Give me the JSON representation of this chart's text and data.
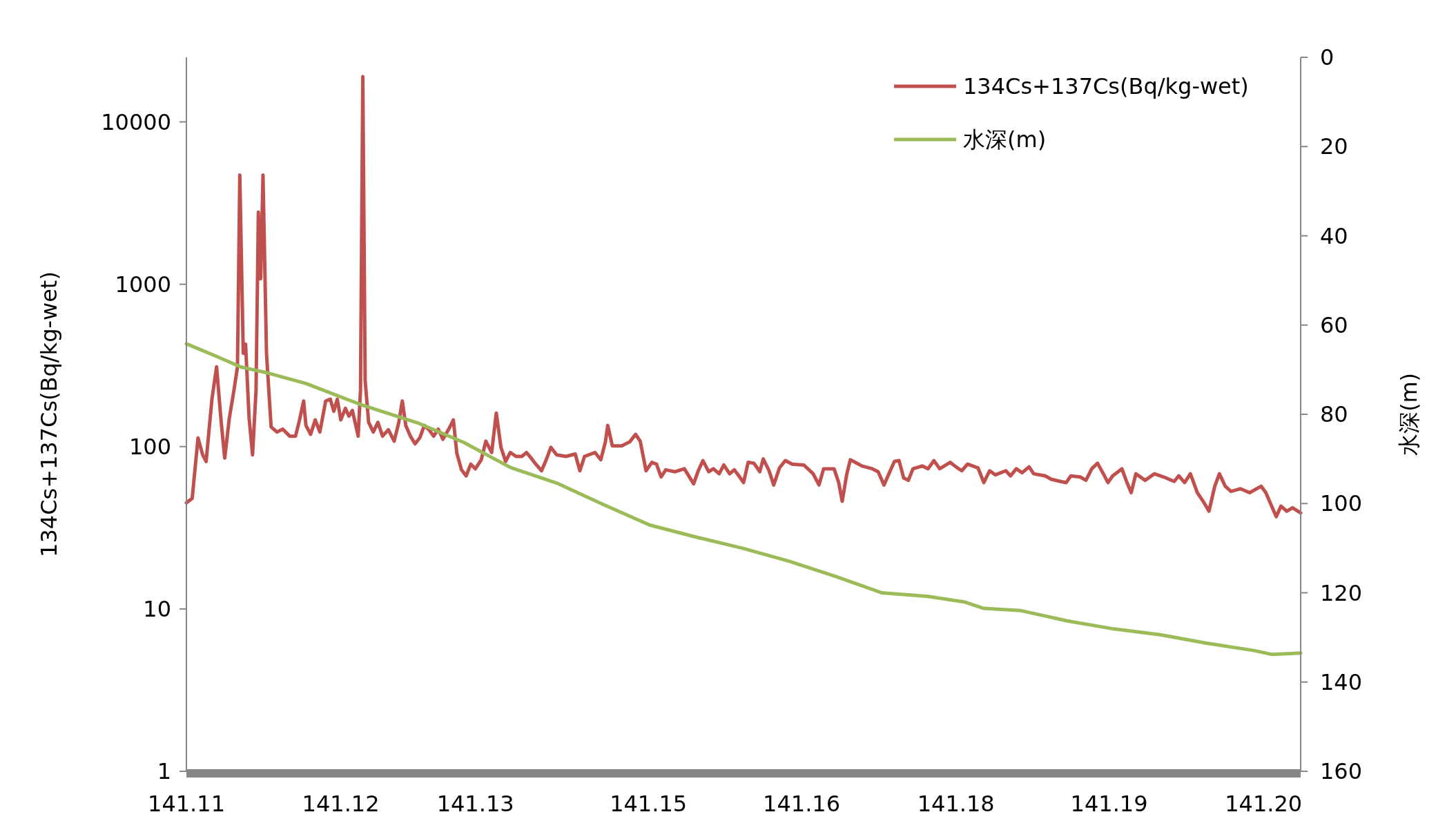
{
  "chart_data": {
    "type": "line",
    "ylabel": "134Cs+137Cs(Bq/kg-wet)",
    "y2label": "水深(m)",
    "log": "y",
    "legend": "top right",
    "xlim": [
      141.11,
      141.206
    ],
    "xticks": [
      141.11,
      {
        "value": 141.1233,
        "label": "141.12"
      },
      {
        "value": 141.1349,
        "label": "141.13"
      },
      {
        "value": 141.1498,
        "label": "141.15"
      },
      {
        "value": 141.163,
        "label": "141.16"
      },
      {
        "value": 141.1763,
        "label": "141.18"
      },
      {
        "value": 141.1895,
        "label": "141.19"
      },
      {
        "value": 141.2028,
        "label": "141.20"
      }
    ],
    "ylim": [
      1,
      25000
    ],
    "yticks": [
      1,
      10,
      100,
      1000,
      10000
    ],
    "y2lim": [
      160,
      0
    ],
    "y2ticks": [
      0,
      20,
      40,
      60,
      80,
      100,
      120,
      140,
      160
    ],
    "series": [
      {
        "name": "134Cs+137Cs(Bq/kg-wet)",
        "color": "#c0504d",
        "x": [
          141.11,
          141.1105,
          141.111,
          141.1114,
          141.1117,
          141.1122,
          141.1126,
          141.113,
          141.1133,
          141.1137,
          141.1141,
          141.1144,
          141.1146,
          141.1149,
          141.1151,
          141.1154,
          141.1157,
          141.116,
          141.1162,
          141.1164,
          141.1166,
          141.1169,
          141.1173,
          141.1178,
          141.1183,
          141.1189,
          141.1194,
          141.1197,
          141.1201,
          141.1203,
          141.1207,
          141.1211,
          141.1215,
          141.122,
          141.1224,
          141.1227,
          141.123,
          141.1233,
          141.1237,
          141.124,
          141.1243,
          141.1248,
          141.125,
          141.1252,
          141.1254,
          141.1257,
          141.1261,
          141.1265,
          141.1269,
          141.1274,
          141.1279,
          141.1283,
          141.1286,
          141.1289,
          141.1293,
          141.1297,
          141.1301,
          141.1305,
          141.1309,
          141.1313,
          141.1317,
          141.1321,
          141.1326,
          141.133,
          141.1333,
          141.1337,
          141.1341,
          141.1345,
          141.1349,
          141.1354,
          141.1358,
          141.1363,
          141.1367,
          141.1371,
          141.1375,
          141.1379,
          141.1384,
          141.1389,
          141.1393,
          141.1397,
          141.1401,
          141.1406,
          141.141,
          141.1414,
          141.1419,
          141.1427,
          141.1435,
          141.1439,
          141.1443,
          141.1452,
          141.1457,
          141.1461,
          141.1463,
          141.1467,
          141.1475,
          141.1482,
          141.1487,
          141.1491,
          141.1496,
          141.1501,
          141.1505,
          141.1509,
          141.1513,
          141.1521,
          141.1529,
          141.1537,
          141.1541,
          141.1545,
          141.155,
          141.1554,
          141.1559,
          141.1563,
          141.1568,
          141.1572,
          141.1576,
          141.158,
          141.1584,
          141.1589,
          141.1594,
          141.1597,
          141.1602,
          141.1606,
          141.1611,
          141.1616,
          141.1622,
          141.1632,
          141.164,
          141.1645,
          141.1649,
          141.1658,
          141.1662,
          141.1665,
          141.1669,
          141.1672,
          141.1682,
          141.1691,
          141.1696,
          141.1701,
          141.1706,
          141.171,
          141.1714,
          141.1718,
          141.1722,
          141.1726,
          141.1734,
          141.1739,
          141.1744,
          141.1749,
          141.1758,
          141.1763,
          141.1768,
          141.1773,
          141.1782,
          141.1787,
          141.1792,
          141.1797,
          141.1806,
          141.181,
          141.1815,
          141.182,
          141.1826,
          141.183,
          141.184,
          141.1845,
          141.1853,
          141.1858,
          141.1862,
          141.187,
          141.1875,
          141.188,
          141.1885,
          141.189,
          141.1894,
          141.1898,
          141.1906,
          141.191,
          141.1914,
          141.1918,
          141.1926,
          141.1934,
          141.1942,
          141.1951,
          141.1955,
          141.196,
          141.1965,
          141.1971,
          141.1976,
          141.1981,
          141.1986,
          141.199,
          141.1995,
          141.2,
          141.2008,
          141.2016,
          141.2026,
          141.203,
          141.2035,
          141.2039,
          141.2043,
          141.2048,
          141.2053,
          141.206
        ],
        "values": [
          45,
          48,
          113,
          89,
          81,
          196,
          310,
          141,
          85,
          150,
          223,
          310,
          4710,
          375,
          428,
          150,
          89,
          223,
          2780,
          1080,
          4710,
          375,
          132,
          123,
          128,
          116,
          116,
          141,
          191,
          135,
          119,
          146,
          123,
          191,
          196,
          165,
          196,
          146,
          172,
          154,
          167,
          116,
          223,
          19000,
          255,
          141,
          123,
          141,
          116,
          127,
          108,
          141,
          191,
          135,
          116,
          104,
          113,
          135,
          127,
          116,
          128,
          111,
          128,
          146,
          91,
          72,
          66,
          78,
          73,
          83,
          108,
          92,
          161,
          99,
          81,
          92,
          87,
          87,
          92,
          85,
          78,
          71,
          83,
          99,
          89,
          87,
          90,
          71,
          87,
          92,
          83,
          107,
          135,
          101,
          101,
          107,
          119,
          108,
          71,
          80,
          78,
          65,
          72,
          70,
          73,
          59,
          71,
          82,
          70,
          73,
          68,
          77,
          68,
          72,
          66,
          60,
          80,
          79,
          70,
          84,
          71,
          58,
          74,
          82,
          78,
          77,
          68,
          58,
          73,
          73,
          60,
          46,
          68,
          83,
          76,
          73,
          70,
          58,
          70,
          81,
          82,
          64,
          62,
          73,
          76,
          73,
          82,
          73,
          80,
          75,
          71,
          78,
          74,
          60,
          71,
          67,
          71,
          66,
          73,
          69,
          75,
          68,
          66,
          63,
          61,
          60,
          66,
          65,
          62,
          73,
          79,
          68,
          60,
          66,
          73,
          61,
          52,
          68,
          62,
          68,
          65,
          61,
          66,
          60,
          68,
          52,
          46,
          40,
          57,
          68,
          57,
          53,
          55,
          52,
          57,
          52,
          43,
          37,
          43,
          40,
          42,
          39
        ]
      },
      {
        "name": "水深(m)",
        "color": "#9bbb59",
        "axis": "y2",
        "x": [
          141.11,
          141.1123,
          141.1147,
          141.1171,
          141.1203,
          141.1251,
          141.1299,
          141.1339,
          141.1379,
          141.1419,
          141.1459,
          141.1499,
          141.1539,
          141.1579,
          141.1619,
          141.1659,
          141.1699,
          141.1739,
          141.1771,
          141.1787,
          141.1819,
          141.1859,
          141.1899,
          141.1939,
          141.1979,
          141.2019,
          141.2035,
          141.206
        ],
        "values": [
          64.2,
          66.7,
          69.4,
          70.8,
          73.1,
          77.9,
          81.9,
          86.3,
          91.9,
          95.4,
          100.2,
          104.8,
          107.5,
          110,
          112.9,
          116.3,
          120,
          120.8,
          122.1,
          123.5,
          124,
          126.3,
          128.1,
          129.4,
          131.3,
          132.9,
          133.8,
          133.5
        ]
      }
    ]
  }
}
